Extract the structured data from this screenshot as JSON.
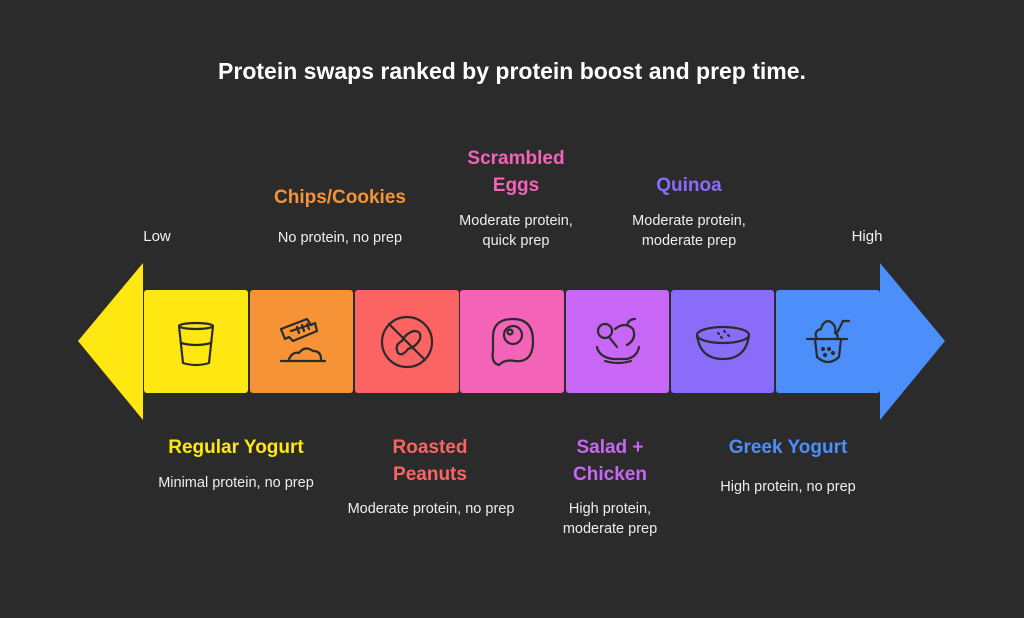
{
  "title": "Protein swaps ranked by protein boost and prep time.",
  "scale": {
    "low": "Low",
    "high": "High"
  },
  "items": [
    {
      "name": "Regular Yogurt",
      "desc": "Minimal protein, no prep",
      "color": "#FFE711",
      "icon": "glass-icon",
      "position": "bottom"
    },
    {
      "name": "Chips/Cookies",
      "desc": "No protein, no prep",
      "color": "#F59336",
      "icon": "chips-icon",
      "position": "top"
    },
    {
      "name": "Roasted Peanuts",
      "desc": "Moderate protein, no prep",
      "color": "#FB6462",
      "icon": "no-peanut-icon",
      "position": "bottom"
    },
    {
      "name": "Scrambled Eggs",
      "desc": "Moderate protein, quick prep",
      "color": "#F364B8",
      "icon": "egg-icon",
      "position": "top"
    },
    {
      "name": "Salad + Chicken",
      "desc": "High protein, moderate prep",
      "color": "#C866F5",
      "icon": "chicken-salad-icon",
      "position": "bottom"
    },
    {
      "name": "Quinoa",
      "desc": "Moderate protein, moderate prep",
      "color": "#8A6CFB",
      "icon": "bowl-icon",
      "position": "top"
    },
    {
      "name": "Greek Yogurt",
      "desc": "High protein, no prep",
      "color": "#4C8FFB",
      "icon": "parfait-icon",
      "position": "bottom"
    }
  ]
}
